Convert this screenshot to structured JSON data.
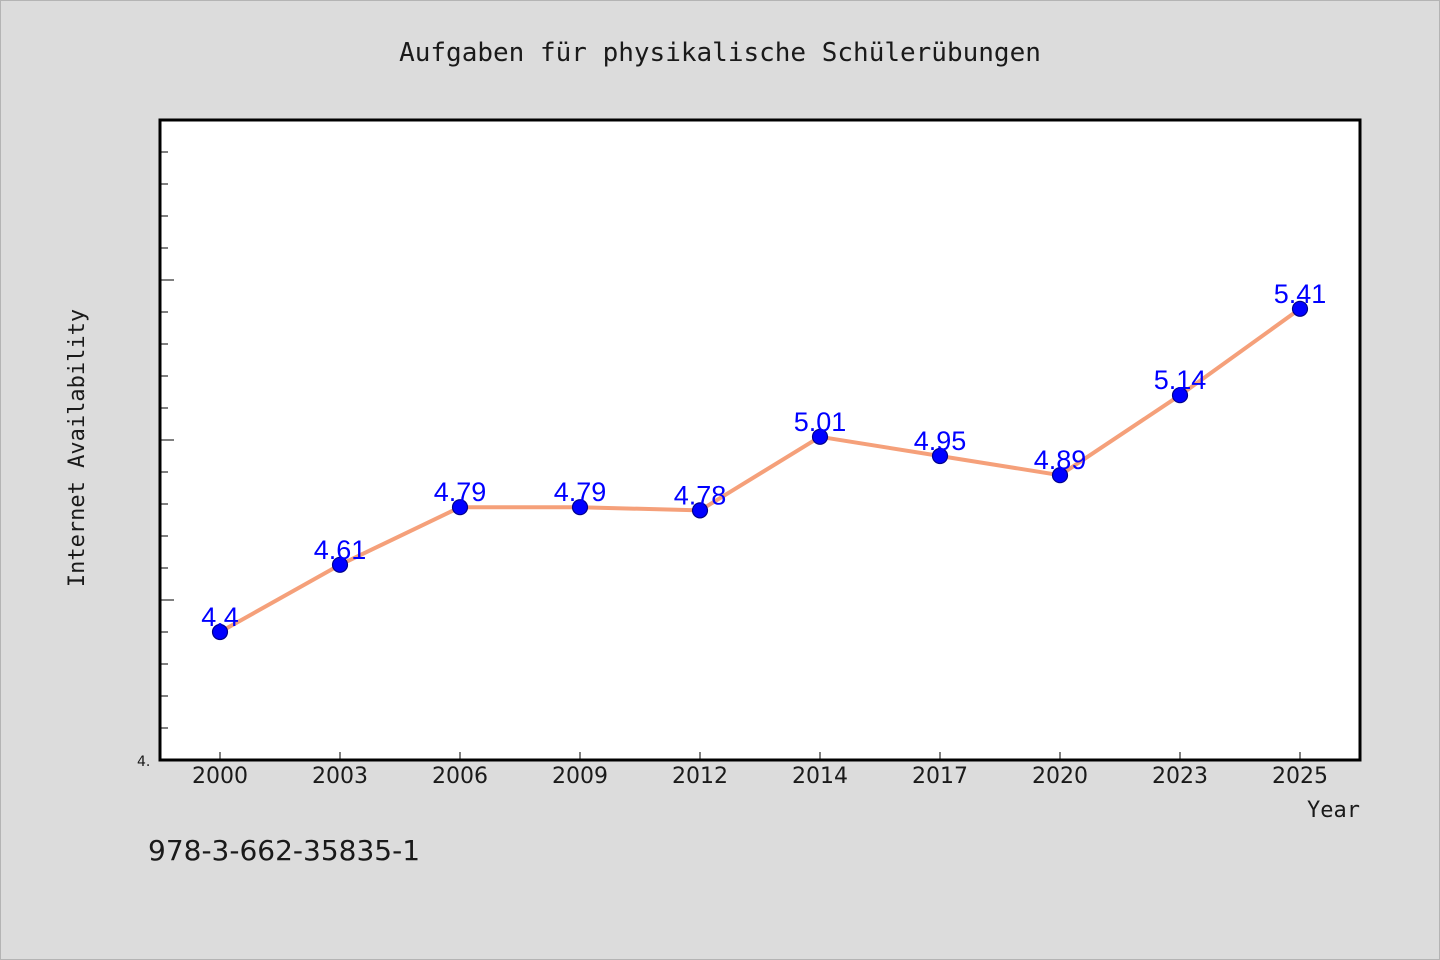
{
  "chart_data": {
    "type": "line",
    "title": "Aufgaben für physikalische Schülerübungen",
    "xlabel": "Year",
    "ylabel": "Internet Availability",
    "categories": [
      "2000",
      "2003",
      "2006",
      "2009",
      "2012",
      "2014",
      "2017",
      "2020",
      "2023",
      "2025"
    ],
    "series": [
      {
        "values": [
          4.4,
          4.61,
          4.79,
          4.79,
          4.78,
          5.01,
          4.95,
          4.89,
          5.14,
          5.41
        ],
        "labels": [
          "4.4",
          "4.61",
          "4.79",
          "4.79",
          "4.78",
          "5.01",
          "4.95",
          "4.89",
          "5.14",
          "5.41"
        ]
      }
    ],
    "ylim": [
      4.0,
      6.0
    ],
    "ytick_labels": [
      "4."
    ],
    "grid": false,
    "legend": false,
    "colors": {
      "line": "#f5a07a",
      "marker": "#0000ff",
      "data_label": "#0000ff",
      "background": "#dcdcdc",
      "plot_area": "#ffffff"
    }
  },
  "footer": {
    "isbn": "978-3-662-35835-1"
  }
}
